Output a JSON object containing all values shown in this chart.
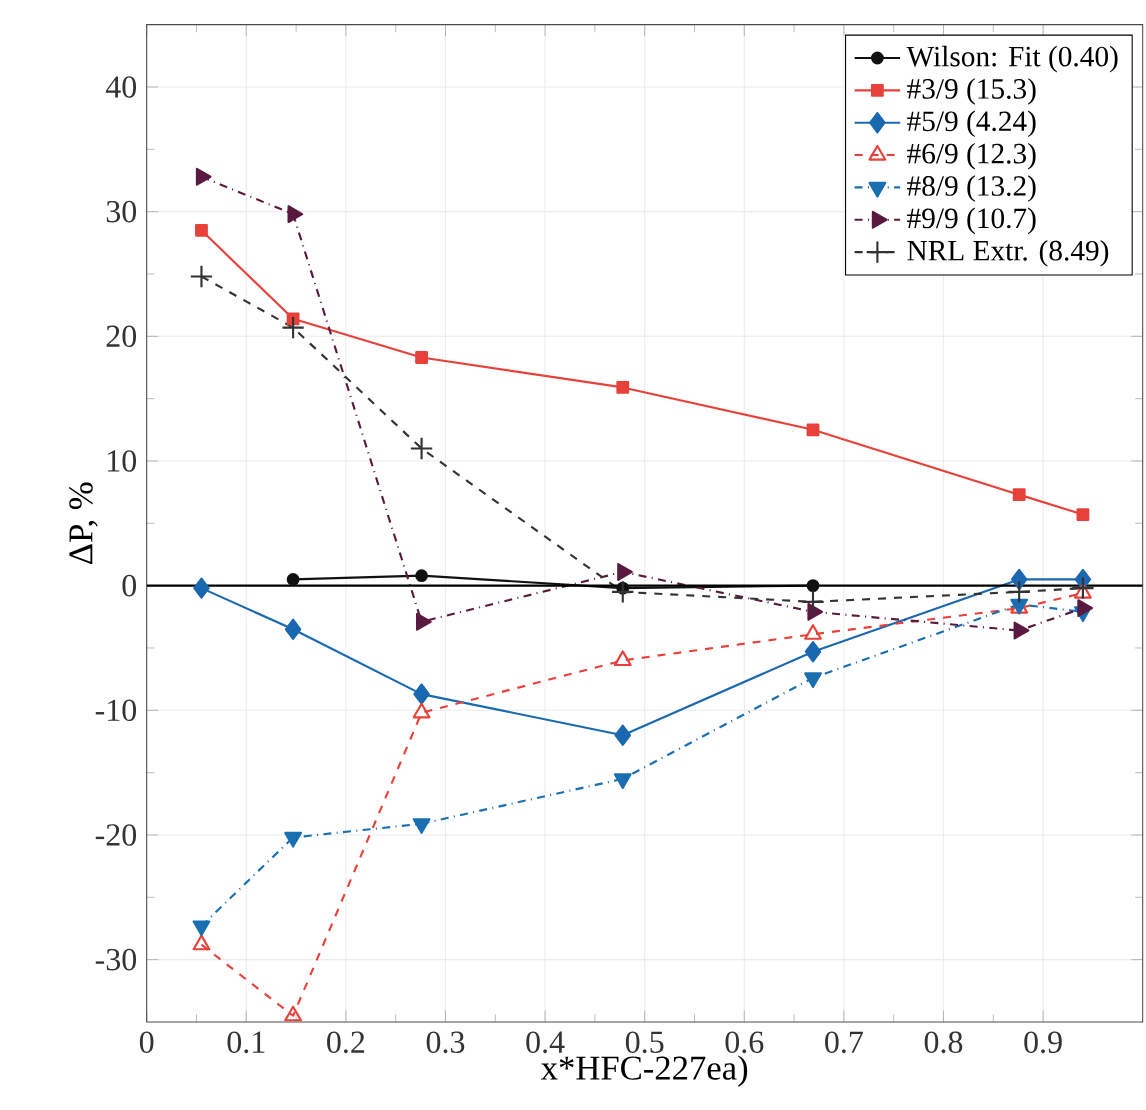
{
  "chart_data": {
    "type": "line",
    "xlabel": "x*HFC-227ea)",
    "ylabel": "ΔP, %",
    "xlim": [
      0,
      1
    ],
    "ylim": [
      -35,
      45
    ],
    "xticks": [
      0,
      0.1,
      0.2,
      0.3,
      0.4,
      0.5,
      0.6,
      0.7,
      0.8,
      0.9
    ],
    "yticks": [
      -30,
      -20,
      -10,
      0,
      10,
      20,
      30,
      40
    ],
    "grid": true,
    "legend": "top right",
    "x": [
      0.055,
      0.147,
      0.276,
      0.478,
      0.669,
      0.876,
      0.94
    ],
    "ref_lines": [
      {
        "axis": "y",
        "value": 0,
        "color": "#000000"
      }
    ],
    "series": [
      {
        "name": "Wilson: Fit (0.40)",
        "color": "#111111",
        "marker": "circle",
        "line_style": "solid",
        "values": [
          null,
          0.5,
          0.8,
          -0.2,
          0,
          null,
          null
        ]
      },
      {
        "name": "#3/9 (15.3)",
        "color": "#e8413a",
        "marker": "square",
        "line_style": "solid",
        "values": [
          28.5,
          21.4,
          18.3,
          15.9,
          12.5,
          7.3,
          5.7
        ]
      },
      {
        "name": "#5/9 (4.24)",
        "color": "#1a68b0",
        "marker": "diamond",
        "line_style": "solid",
        "values": [
          -0.2,
          -3.5,
          -8.7,
          -12,
          -5.3,
          0.5,
          0.5
        ]
      },
      {
        "name": "#6/9 (12.3)",
        "color": "#e8413a",
        "marker": "triangle",
        "line_style": "dashed",
        "values": [
          -28.8,
          -34.5,
          -10.2,
          -6,
          -3.9,
          -1.8,
          -0.6
        ]
      },
      {
        "name": "#8/9 (13.2)",
        "color": "#1a6fb0",
        "marker": "triangle_down",
        "line_style": "dashdot",
        "values": [
          -27.3,
          -20.2,
          -19.1,
          -15.5,
          -7.4,
          -1.5,
          -2.1
        ]
      },
      {
        "name": "#9/9 (10.7)",
        "color": "#5a1a40",
        "marker": "triangle_right",
        "line_style": "dashdot",
        "values": [
          32.8,
          29.8,
          -2.9,
          1.1,
          -2.1,
          -3.6,
          -1.8
        ]
      },
      {
        "name": "NRL Extr. (8.49)",
        "color": "#333333",
        "marker": "cross",
        "line_style": "dashed",
        "values": [
          24.8,
          20.7,
          11,
          -0.5,
          -1.3,
          -0.5,
          -0.2
        ]
      }
    ]
  }
}
